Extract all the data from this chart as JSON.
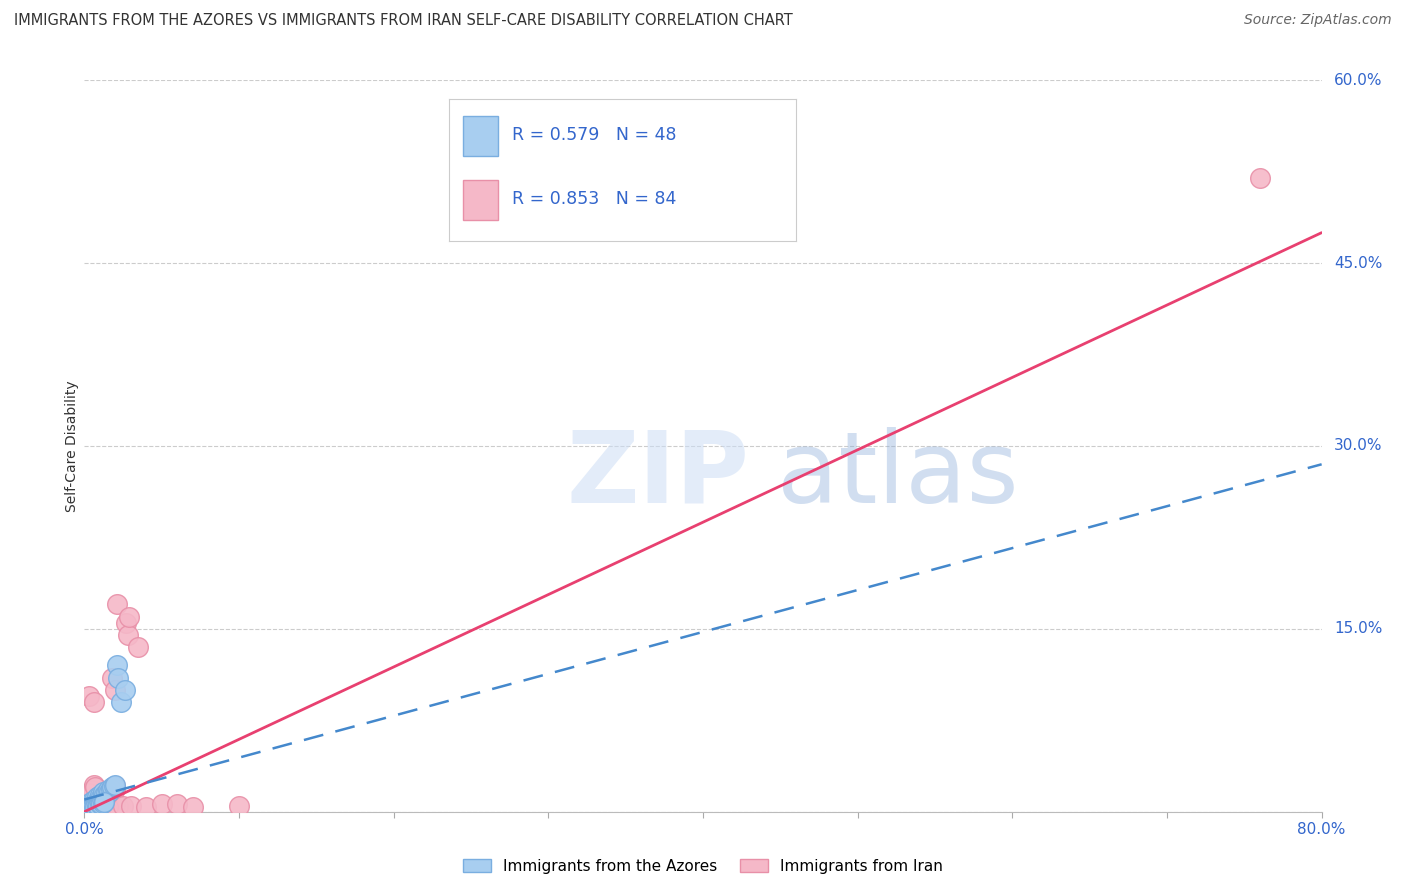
{
  "title": "IMMIGRANTS FROM THE AZORES VS IMMIGRANTS FROM IRAN SELF-CARE DISABILITY CORRELATION CHART",
  "source": "Source: ZipAtlas.com",
  "ylabel": "Self-Care Disability",
  "xlim": [
    0.0,
    0.8
  ],
  "ylim": [
    0.0,
    0.6
  ],
  "xticks": [
    0.0,
    0.1,
    0.2,
    0.3,
    0.4,
    0.5,
    0.6,
    0.7,
    0.8
  ],
  "xticklabels": [
    "0.0%",
    "",
    "",
    "",
    "",
    "",
    "",
    "",
    "80.0%"
  ],
  "yticks_right": [
    0.0,
    0.15,
    0.3,
    0.45,
    0.6
  ],
  "ytick_right_labels": [
    "",
    "15.0%",
    "30.0%",
    "45.0%",
    "60.0%"
  ],
  "grid_color": "#cccccc",
  "background_color": "#ffffff",
  "azores_scatter_color_face": "#a8cef0",
  "azores_scatter_color_edge": "#7aaee0",
  "iran_scatter_color_face": "#f5b8c8",
  "iran_scatter_color_edge": "#e890a8",
  "azores_line_color": "#4488cc",
  "iran_line_color": "#e84070",
  "iran_trend_x": [
    0.0,
    0.8
  ],
  "iran_trend_y": [
    0.0,
    0.475
  ],
  "azores_trend_x": [
    0.0,
    0.8
  ],
  "azores_trend_y": [
    0.01,
    0.285
  ],
  "azores_scatter": [
    [
      0.001,
      0.003
    ],
    [
      0.002,
      0.004
    ],
    [
      0.003,
      0.006
    ],
    [
      0.003,
      0.003
    ],
    [
      0.004,
      0.005
    ],
    [
      0.004,
      0.008
    ],
    [
      0.005,
      0.006
    ],
    [
      0.005,
      0.004
    ],
    [
      0.006,
      0.007
    ],
    [
      0.006,
      0.01
    ],
    [
      0.007,
      0.008
    ],
    [
      0.007,
      0.005
    ],
    [
      0.008,
      0.009
    ],
    [
      0.008,
      0.012
    ],
    [
      0.009,
      0.01
    ],
    [
      0.009,
      0.007
    ],
    [
      0.01,
      0.011
    ],
    [
      0.01,
      0.014
    ],
    [
      0.011,
      0.012
    ],
    [
      0.011,
      0.008
    ],
    [
      0.012,
      0.013
    ],
    [
      0.012,
      0.016
    ],
    [
      0.013,
      0.014
    ],
    [
      0.013,
      0.01
    ],
    [
      0.014,
      0.015
    ],
    [
      0.015,
      0.018
    ],
    [
      0.016,
      0.016
    ],
    [
      0.017,
      0.019
    ],
    [
      0.018,
      0.02
    ],
    [
      0.019,
      0.021
    ],
    [
      0.02,
      0.022
    ],
    [
      0.021,
      0.12
    ],
    [
      0.022,
      0.11
    ],
    [
      0.024,
      0.09
    ],
    [
      0.026,
      0.1
    ],
    [
      0.001,
      0.001
    ],
    [
      0.002,
      0.002
    ],
    [
      0.003,
      0.002
    ],
    [
      0.004,
      0.003
    ],
    [
      0.005,
      0.003
    ],
    [
      0.006,
      0.004
    ],
    [
      0.007,
      0.004
    ],
    [
      0.008,
      0.005
    ],
    [
      0.009,
      0.005
    ],
    [
      0.01,
      0.006
    ],
    [
      0.011,
      0.006
    ],
    [
      0.012,
      0.007
    ],
    [
      0.013,
      0.008
    ]
  ],
  "iran_scatter": [
    [
      0.001,
      0.001
    ],
    [
      0.001,
      0.002
    ],
    [
      0.002,
      0.003
    ],
    [
      0.002,
      0.002
    ],
    [
      0.003,
      0.004
    ],
    [
      0.003,
      0.003
    ],
    [
      0.004,
      0.005
    ],
    [
      0.004,
      0.003
    ],
    [
      0.005,
      0.006
    ],
    [
      0.005,
      0.004
    ],
    [
      0.006,
      0.007
    ],
    [
      0.006,
      0.005
    ],
    [
      0.007,
      0.008
    ],
    [
      0.007,
      0.006
    ],
    [
      0.008,
      0.009
    ],
    [
      0.008,
      0.007
    ],
    [
      0.009,
      0.01
    ],
    [
      0.009,
      0.008
    ],
    [
      0.01,
      0.011
    ],
    [
      0.01,
      0.009
    ],
    [
      0.011,
      0.012
    ],
    [
      0.011,
      0.01
    ],
    [
      0.012,
      0.013
    ],
    [
      0.012,
      0.011
    ],
    [
      0.013,
      0.014
    ],
    [
      0.013,
      0.012
    ],
    [
      0.014,
      0.015
    ],
    [
      0.014,
      0.013
    ],
    [
      0.015,
      0.016
    ],
    [
      0.015,
      0.014
    ],
    [
      0.016,
      0.017
    ],
    [
      0.016,
      0.015
    ],
    [
      0.017,
      0.018
    ],
    [
      0.017,
      0.016
    ],
    [
      0.018,
      0.019
    ],
    [
      0.018,
      0.017
    ],
    [
      0.019,
      0.02
    ],
    [
      0.019,
      0.018
    ],
    [
      0.02,
      0.021
    ],
    [
      0.02,
      0.019
    ],
    [
      0.001,
      0.003
    ],
    [
      0.002,
      0.005
    ],
    [
      0.003,
      0.006
    ],
    [
      0.004,
      0.007
    ],
    [
      0.005,
      0.008
    ],
    [
      0.006,
      0.009
    ],
    [
      0.007,
      0.01
    ],
    [
      0.008,
      0.011
    ],
    [
      0.003,
      0.015
    ],
    [
      0.005,
      0.018
    ],
    [
      0.006,
      0.022
    ],
    [
      0.007,
      0.02
    ],
    [
      0.004,
      0.002
    ],
    [
      0.006,
      0.003
    ],
    [
      0.008,
      0.003
    ],
    [
      0.01,
      0.004
    ],
    [
      0.012,
      0.004
    ],
    [
      0.014,
      0.005
    ],
    [
      0.016,
      0.005
    ],
    [
      0.018,
      0.006
    ],
    [
      0.02,
      0.006
    ],
    [
      0.022,
      0.005
    ],
    [
      0.01,
      0.003
    ],
    [
      0.015,
      0.004
    ],
    [
      0.025,
      0.005
    ],
    [
      0.03,
      0.005
    ],
    [
      0.04,
      0.004
    ],
    [
      0.05,
      0.006
    ],
    [
      0.06,
      0.006
    ],
    [
      0.07,
      0.004
    ],
    [
      0.1,
      0.005
    ],
    [
      0.021,
      0.17
    ],
    [
      0.027,
      0.155
    ],
    [
      0.028,
      0.145
    ],
    [
      0.029,
      0.16
    ],
    [
      0.035,
      0.135
    ],
    [
      0.76,
      0.52
    ],
    [
      0.003,
      0.095
    ],
    [
      0.006,
      0.09
    ],
    [
      0.018,
      0.11
    ],
    [
      0.02,
      0.1
    ]
  ]
}
